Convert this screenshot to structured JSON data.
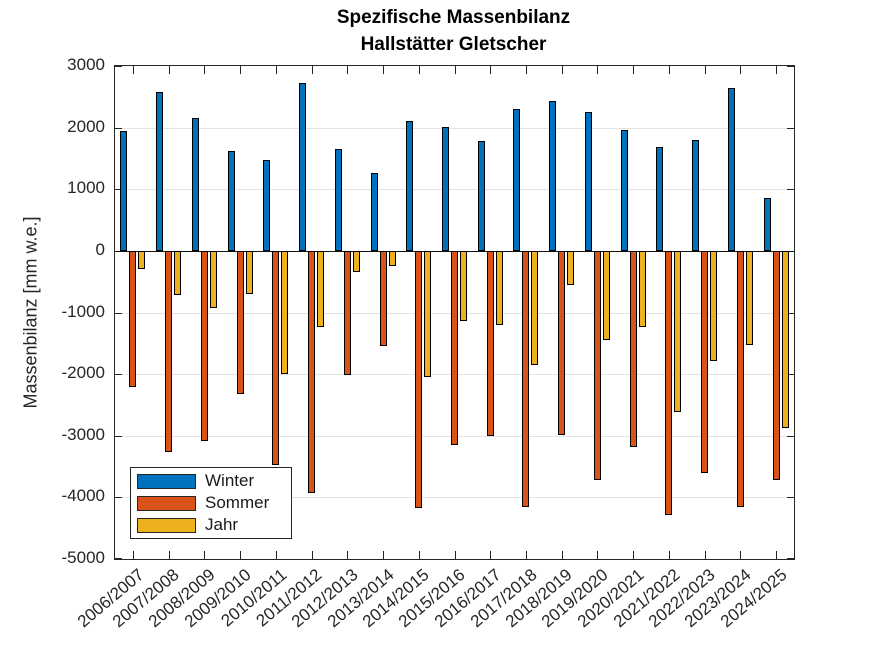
{
  "title": {
    "line1": "Spezifische Massenbilanz",
    "line2": "Hallstätter Gletscher"
  },
  "axes": {
    "ylabel": "Massenbilanz [mm w.e.]"
  },
  "legend": {
    "items": [
      {
        "label": "Winter",
        "color": "#0072BD"
      },
      {
        "label": "Sommer",
        "color": "#D95319"
      },
      {
        "label": "Jahr",
        "color": "#EDB120"
      }
    ]
  },
  "colors": {
    "winter": "#0072BD",
    "sommer": "#D95319",
    "jahr": "#EDB120",
    "axis": "#262626",
    "grid": "#e2e2e2",
    "background": "#ffffff"
  },
  "chart_data": {
    "type": "bar",
    "title": "Spezifische Massenbilanz — Hallstätter Gletscher",
    "xlabel": "",
    "ylabel": "Massenbilanz [mm w.e.]",
    "ylim": [
      -5000,
      3000
    ],
    "yticks": [
      3000,
      2000,
      1000,
      0,
      -1000,
      -2000,
      -3000,
      -4000,
      -5000
    ],
    "grid": true,
    "legend_position": "southwest-inside",
    "categories": [
      "2006/2007",
      "2007/2008",
      "2008/2009",
      "2009/2010",
      "2010/2011",
      "2011/2012",
      "2012/2013",
      "2013/2014",
      "2014/2015",
      "2015/2016",
      "2016/2017",
      "2017/2018",
      "2018/2019",
      "2019/2020",
      "2020/2021",
      "2021/2022",
      "2022/2023",
      "2023/2024",
      "2024/2025"
    ],
    "series": [
      {
        "name": "Winter",
        "color": "#0072BD",
        "values": [
          1940,
          2570,
          2150,
          1620,
          1470,
          2720,
          1660,
          1260,
          2100,
          2010,
          1780,
          2310,
          2430,
          2250,
          1960,
          1690,
          1800,
          2650,
          850
        ]
      },
      {
        "name": "Sommer",
        "color": "#D95319",
        "values": [
          -2210,
          -3260,
          -3080,
          -2330,
          -3480,
          -3930,
          -2020,
          -1550,
          -4170,
          -3150,
          -3000,
          -4160,
          -2990,
          -3710,
          -3180,
          -4290,
          -3600,
          -4160,
          -3710
        ]
      },
      {
        "name": "Jahr",
        "color": "#EDB120",
        "values": [
          -300,
          -720,
          -930,
          -700,
          -2000,
          -1230,
          -350,
          -250,
          -2050,
          -1130,
          -1210,
          -1850,
          -550,
          -1440,
          -1230,
          -2610,
          -1790,
          -1520,
          -2870
        ]
      }
    ]
  }
}
